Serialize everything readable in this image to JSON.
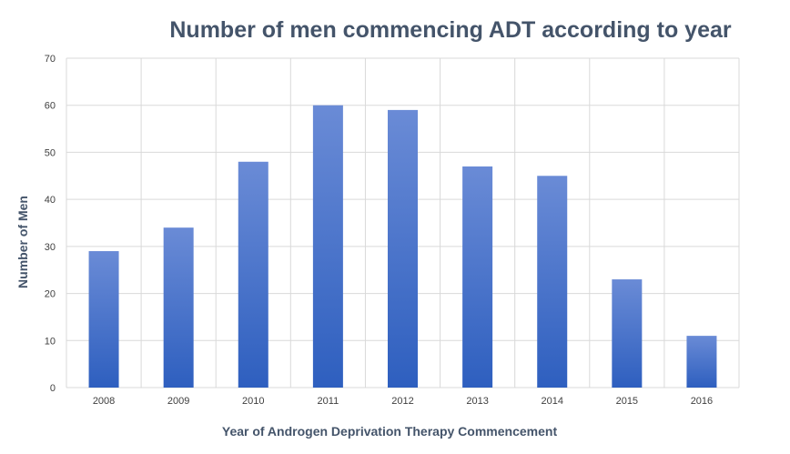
{
  "chart_data": {
    "type": "bar",
    "title": "Number of men commencing ADT according to year",
    "xlabel": "Year of Androgen Deprivation Therapy Commencement",
    "ylabel": "Number of Men",
    "categories": [
      "2008",
      "2009",
      "2010",
      "2011",
      "2012",
      "2013",
      "2014",
      "2015",
      "2016"
    ],
    "values": [
      29,
      34,
      48,
      60,
      59,
      47,
      45,
      23,
      11
    ],
    "ylim": [
      0,
      70
    ],
    "yticks": [
      0,
      10,
      20,
      30,
      40,
      50,
      60,
      70
    ],
    "grid": true,
    "legend": "none",
    "colors": {
      "bar_top": "#6a8bd6",
      "bar_bottom": "#2e5fbf",
      "grid": "#d9d9d9"
    }
  }
}
